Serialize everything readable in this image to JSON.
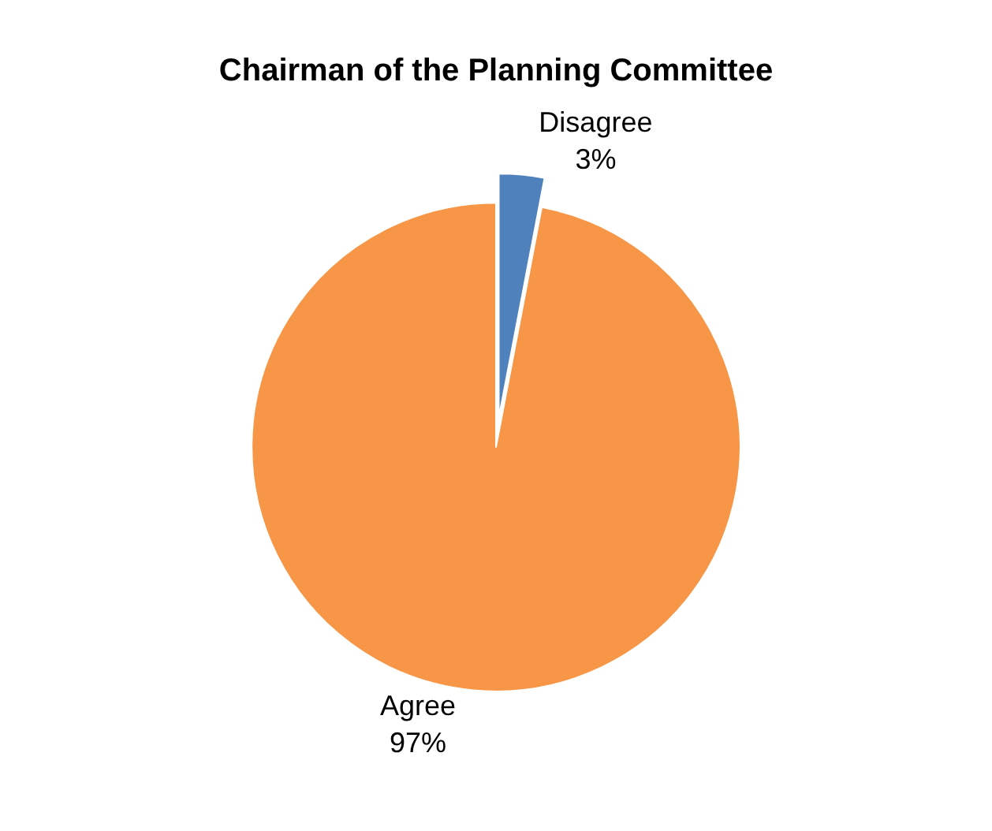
{
  "chart_data": {
    "type": "pie",
    "title": "Chairman of the Planning Committee",
    "categories": [
      "Disagree",
      "Agree"
    ],
    "values": [
      3,
      97
    ],
    "value_labels": [
      "3%",
      "97%"
    ],
    "colors": [
      "#4f81bd",
      "#f79646"
    ],
    "legend": false
  }
}
